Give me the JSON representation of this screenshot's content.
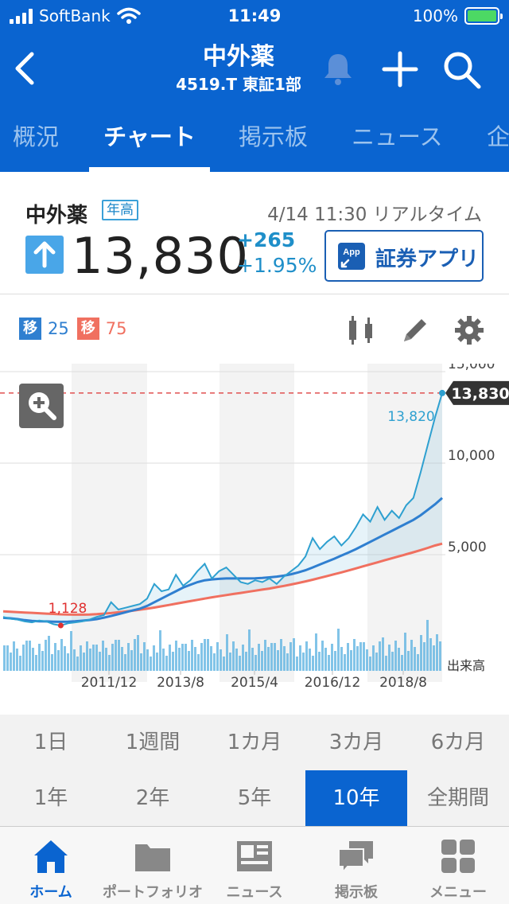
{
  "status": {
    "carrier": "SoftBank",
    "time": "11:49",
    "battery": "100%"
  },
  "nav": {
    "title": "中外薬",
    "subtitle": "4519.T 東証1部"
  },
  "tabs": [
    "概況",
    "チャート",
    "掲示板",
    "ニュース",
    "企"
  ],
  "active_tab": "チャート",
  "quote": {
    "name": "中外薬",
    "badge": "年高",
    "time": "4/14 11:30 リアルタイム",
    "price": "13,830",
    "change": "+265",
    "change_pct": "+1.95%",
    "app_button": "証券アプリ",
    "app_icon_text": "App"
  },
  "ma": [
    {
      "label": "移",
      "value": "25",
      "color": "#2f7fd0"
    },
    {
      "label": "移",
      "value": "75",
      "color": "#f07060"
    }
  ],
  "chart_data": {
    "type": "line",
    "x_ticks": [
      "2011/12",
      "2013/8",
      "2015/4",
      "2016/12",
      "2018/8"
    ],
    "y_ticks": [
      "15,000",
      "10,000",
      "5,000"
    ],
    "ylim": [
      0,
      15000
    ],
    "last_price_label": "13,830",
    "high_label": "13,820",
    "low_label": "1,128",
    "volume_label": "出来高",
    "price_color": "#2ea0d0",
    "ma25_color": "#2f7fd0",
    "ma75_color": "#f07060",
    "series": [
      {
        "values": [
          1600,
          1500,
          1450,
          1350,
          1300,
          1400,
          1350,
          1200,
          1128,
          1250,
          1300,
          1350,
          1450,
          1600,
          1700,
          2400,
          2000,
          2100,
          2200,
          2300,
          2600,
          3400,
          3000,
          3100,
          3900,
          3300,
          3600,
          4100,
          4500,
          3700,
          4100,
          4300,
          3900,
          3500,
          3400,
          3600,
          3500,
          3700,
          3400,
          3800,
          4100,
          4400,
          4900,
          5900,
          5300,
          5700,
          6000,
          5500,
          5900,
          6500,
          7200,
          6800,
          7600,
          6900,
          7400,
          7000,
          7700,
          8100,
          9500,
          11000,
          12500,
          13830
        ]
      },
      {
        "values": [
          1550,
          1520,
          1480,
          1420,
          1380,
          1360,
          1350,
          1340,
          1330,
          1340,
          1360,
          1390,
          1430,
          1480,
          1560,
          1650,
          1750,
          1850,
          1950,
          2050,
          2200,
          2400,
          2600,
          2800,
          3000,
          3200,
          3350,
          3500,
          3600,
          3650,
          3680,
          3700,
          3700,
          3700,
          3700,
          3710,
          3730,
          3760,
          3800,
          3850,
          3930,
          4030,
          4150,
          4300,
          4460,
          4620,
          4780,
          4950,
          5120,
          5300,
          5500,
          5700,
          5900,
          6100,
          6300,
          6500,
          6700,
          6900,
          7150,
          7450,
          7750,
          8100
        ]
      },
      {
        "values": [
          1900,
          1880,
          1860,
          1840,
          1820,
          1800,
          1780,
          1760,
          1740,
          1730,
          1720,
          1720,
          1730,
          1750,
          1780,
          1810,
          1850,
          1890,
          1940,
          1990,
          2050,
          2110,
          2180,
          2250,
          2320,
          2390,
          2460,
          2530,
          2600,
          2670,
          2730,
          2790,
          2850,
          2910,
          2970,
          3030,
          3090,
          3150,
          3220,
          3290,
          3370,
          3450,
          3540,
          3630,
          3730,
          3830,
          3930,
          4030,
          4140,
          4250,
          4360,
          4470,
          4580,
          4690,
          4800,
          4910,
          5020,
          5130,
          5250,
          5370,
          5500,
          5600
        ]
      }
    ]
  },
  "periods": [
    "1日",
    "1週間",
    "1カ月",
    "3カ月",
    "6カ月",
    "1年",
    "2年",
    "5年",
    "10年",
    "全期間"
  ],
  "active_period": "10年",
  "tabbar": [
    "ホーム",
    "ポートフォリオ",
    "ニュース",
    "掲示板",
    "メニュー"
  ],
  "active_tabbar": "ホーム"
}
